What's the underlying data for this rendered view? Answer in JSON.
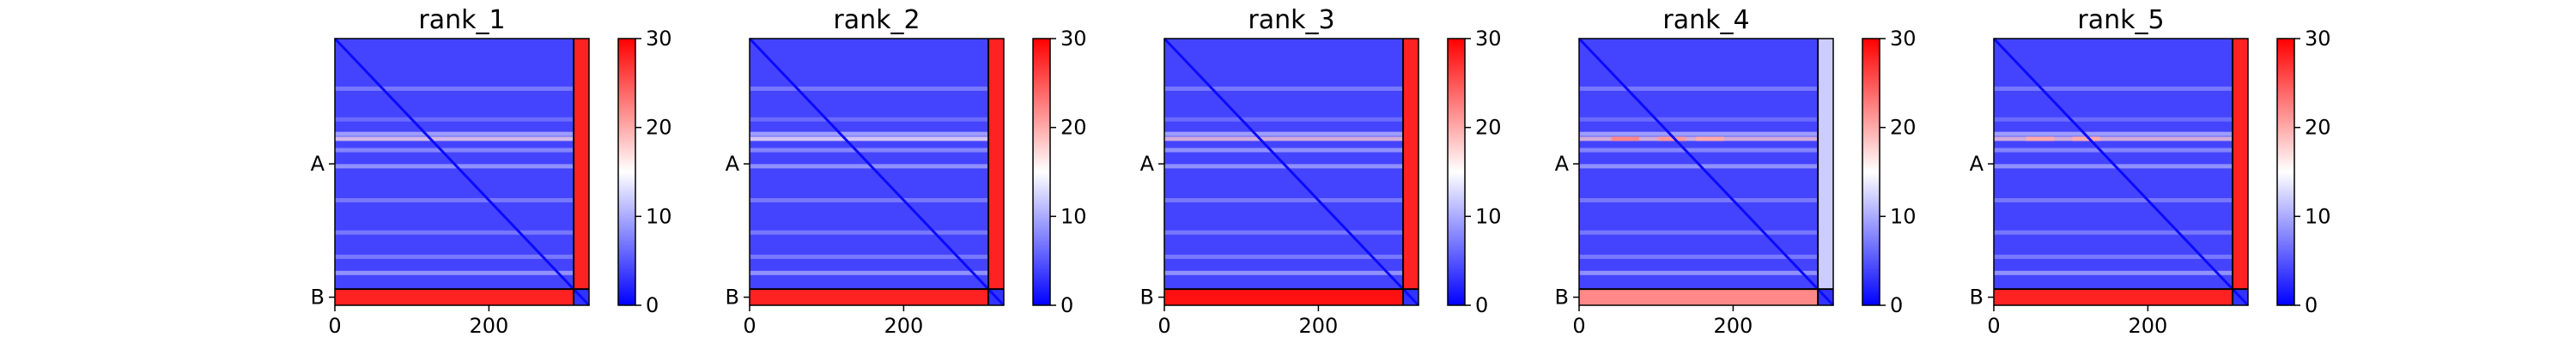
{
  "chart_data": [
    {
      "type": "heatmap",
      "title": "rank_1",
      "x_ticks": [
        0,
        200
      ],
      "y_tick_labels": [
        "A",
        "B"
      ],
      "chains": [
        {
          "label": "A",
          "start": 0,
          "end": 310
        },
        {
          "label": "B",
          "start": 310,
          "end": 330
        }
      ],
      "colorbar": {
        "ticks": [
          0,
          10,
          20,
          30
        ],
        "range": [
          0,
          30
        ],
        "colormap": "bwr"
      },
      "values": {
        "A_A": 4,
        "A_B": 28,
        "B_A": 28,
        "B_B": 3,
        "band_rows": [
          [
            124,
            17
          ],
          [
            118,
            11
          ],
          [
            138,
            9
          ],
          [
            158,
            10
          ],
          [
            62,
            8
          ],
          [
            100,
            7
          ],
          [
            200,
            8
          ],
          [
            240,
            8
          ],
          [
            270,
            8
          ],
          [
            290,
            10
          ]
        ],
        "hot_spots": []
      }
    },
    {
      "type": "heatmap",
      "title": "rank_2",
      "x_ticks": [
        0,
        200
      ],
      "y_tick_labels": [
        "A",
        "B"
      ],
      "chains": [
        {
          "label": "A",
          "start": 0,
          "end": 310
        },
        {
          "label": "B",
          "start": 310,
          "end": 330
        }
      ],
      "colorbar": {
        "ticks": [
          0,
          10,
          20,
          30
        ],
        "range": [
          0,
          30
        ],
        "colormap": "bwr"
      },
      "values": {
        "A_A": 4,
        "A_B": 28,
        "B_A": 28,
        "B_B": 3,
        "band_rows": [
          [
            124,
            16
          ],
          [
            118,
            11
          ],
          [
            138,
            9
          ],
          [
            158,
            10
          ],
          [
            62,
            8
          ],
          [
            100,
            7
          ],
          [
            200,
            8
          ],
          [
            240,
            8
          ],
          [
            270,
            8
          ],
          [
            290,
            10
          ]
        ],
        "hot_spots": []
      }
    },
    {
      "type": "heatmap",
      "title": "rank_3",
      "x_ticks": [
        0,
        200
      ],
      "y_tick_labels": [
        "A",
        "B"
      ],
      "chains": [
        {
          "label": "A",
          "start": 0,
          "end": 310
        },
        {
          "label": "B",
          "start": 310,
          "end": 330
        }
      ],
      "colorbar": {
        "ticks": [
          0,
          10,
          20,
          30
        ],
        "range": [
          0,
          30
        ],
        "colormap": "bwr"
      },
      "values": {
        "A_A": 4,
        "A_B": 28,
        "B_A": 29,
        "B_B": 3,
        "band_rows": [
          [
            124,
            18
          ],
          [
            118,
            11
          ],
          [
            138,
            10
          ],
          [
            158,
            10
          ],
          [
            62,
            8
          ],
          [
            100,
            7
          ],
          [
            200,
            8
          ],
          [
            240,
            8
          ],
          [
            270,
            8
          ],
          [
            290,
            10
          ]
        ],
        "hot_spots": []
      }
    },
    {
      "type": "heatmap",
      "title": "rank_4",
      "x_ticks": [
        0,
        200
      ],
      "y_tick_labels": [
        "A",
        "B"
      ],
      "chains": [
        {
          "label": "A",
          "start": 0,
          "end": 310
        },
        {
          "label": "B",
          "start": 310,
          "end": 330
        }
      ],
      "colorbar": {
        "ticks": [
          0,
          10,
          20,
          30
        ],
        "range": [
          0,
          30
        ],
        "colormap": "bwr"
      },
      "values": {
        "A_A": 4,
        "A_B": 12,
        "B_A": 22,
        "B_B": 3,
        "band_rows": [
          [
            124,
            18
          ],
          [
            118,
            11
          ],
          [
            138,
            9
          ],
          [
            158,
            10
          ],
          [
            62,
            8
          ],
          [
            100,
            7
          ],
          [
            200,
            8
          ],
          [
            240,
            8
          ],
          [
            270,
            8
          ],
          [
            290,
            10
          ]
        ],
        "hot_spots": [
          [
            124,
            60,
            22
          ],
          [
            124,
            120,
            21
          ],
          [
            124,
            170,
            20
          ]
        ]
      }
    },
    {
      "type": "heatmap",
      "title": "rank_5",
      "x_ticks": [
        0,
        200
      ],
      "y_tick_labels": [
        "A",
        "B"
      ],
      "chains": [
        {
          "label": "A",
          "start": 0,
          "end": 310
        },
        {
          "label": "B",
          "start": 310,
          "end": 330
        }
      ],
      "colorbar": {
        "ticks": [
          0,
          10,
          20,
          30
        ],
        "range": [
          0,
          30
        ],
        "colormap": "bwr"
      },
      "values": {
        "A_A": 4,
        "A_B": 28,
        "B_A": 28,
        "B_B": 3,
        "band_rows": [
          [
            124,
            18
          ],
          [
            118,
            11
          ],
          [
            138,
            9
          ],
          [
            158,
            10
          ],
          [
            62,
            8
          ],
          [
            100,
            7
          ],
          [
            200,
            8
          ],
          [
            240,
            8
          ],
          [
            270,
            8
          ],
          [
            290,
            10
          ]
        ],
        "hot_spots": [
          [
            124,
            60,
            20
          ],
          [
            124,
            120,
            20
          ]
        ]
      }
    }
  ]
}
